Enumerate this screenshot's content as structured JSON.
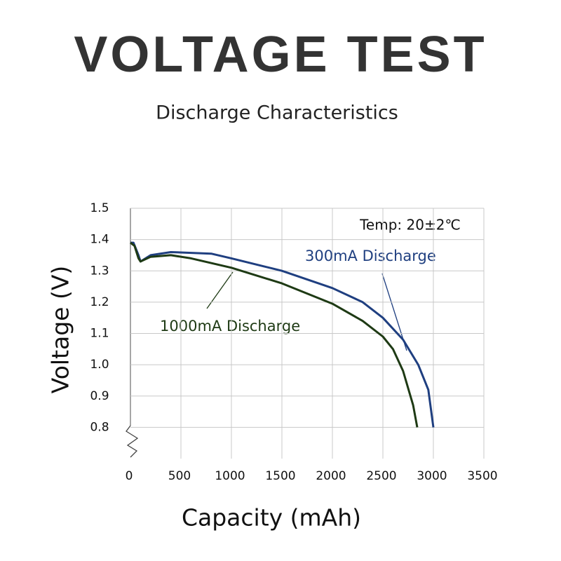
{
  "chart_data": {
    "type": "line",
    "title": "VOLTAGE TEST",
    "subtitle": "Discharge Characteristics",
    "x_label": "Capacity (mAh)",
    "y_label": "Voltage (V)",
    "annotation": "Temp: 20±2℃",
    "xlim": [
      0,
      3500
    ],
    "ylim": [
      0.7,
      1.5
    ],
    "xticks": [
      0,
      500,
      1000,
      1500,
      2000,
      2500,
      3000,
      3500
    ],
    "yticks": [
      0.8,
      0.9,
      {
        "value": 1.0,
        "label": "1.0"
      },
      1.1,
      1.2,
      1.3,
      1.4,
      1.5
    ],
    "grid": true,
    "series": [
      {
        "name": "300mA Discharge",
        "color": "#1f3f80",
        "x": [
          0,
          30,
          80,
          100,
          200,
          400,
          800,
          1000,
          1500,
          2000,
          2300,
          2500,
          2700,
          2850,
          2950,
          3000
        ],
        "values": [
          1.39,
          1.39,
          1.35,
          1.33,
          1.35,
          1.36,
          1.355,
          1.34,
          1.3,
          1.245,
          1.2,
          1.15,
          1.08,
          1.0,
          0.92,
          0.8
        ]
      },
      {
        "name": "1000mA Discharge",
        "color": "#1e3a14",
        "x": [
          0,
          40,
          80,
          100,
          200,
          400,
          600,
          1000,
          1500,
          2000,
          2300,
          2500,
          2600,
          2700,
          2800,
          2840
        ],
        "values": [
          1.39,
          1.38,
          1.34,
          1.33,
          1.345,
          1.35,
          1.34,
          1.31,
          1.26,
          1.195,
          1.14,
          1.09,
          1.05,
          0.98,
          0.87,
          0.8
        ]
      }
    ]
  }
}
